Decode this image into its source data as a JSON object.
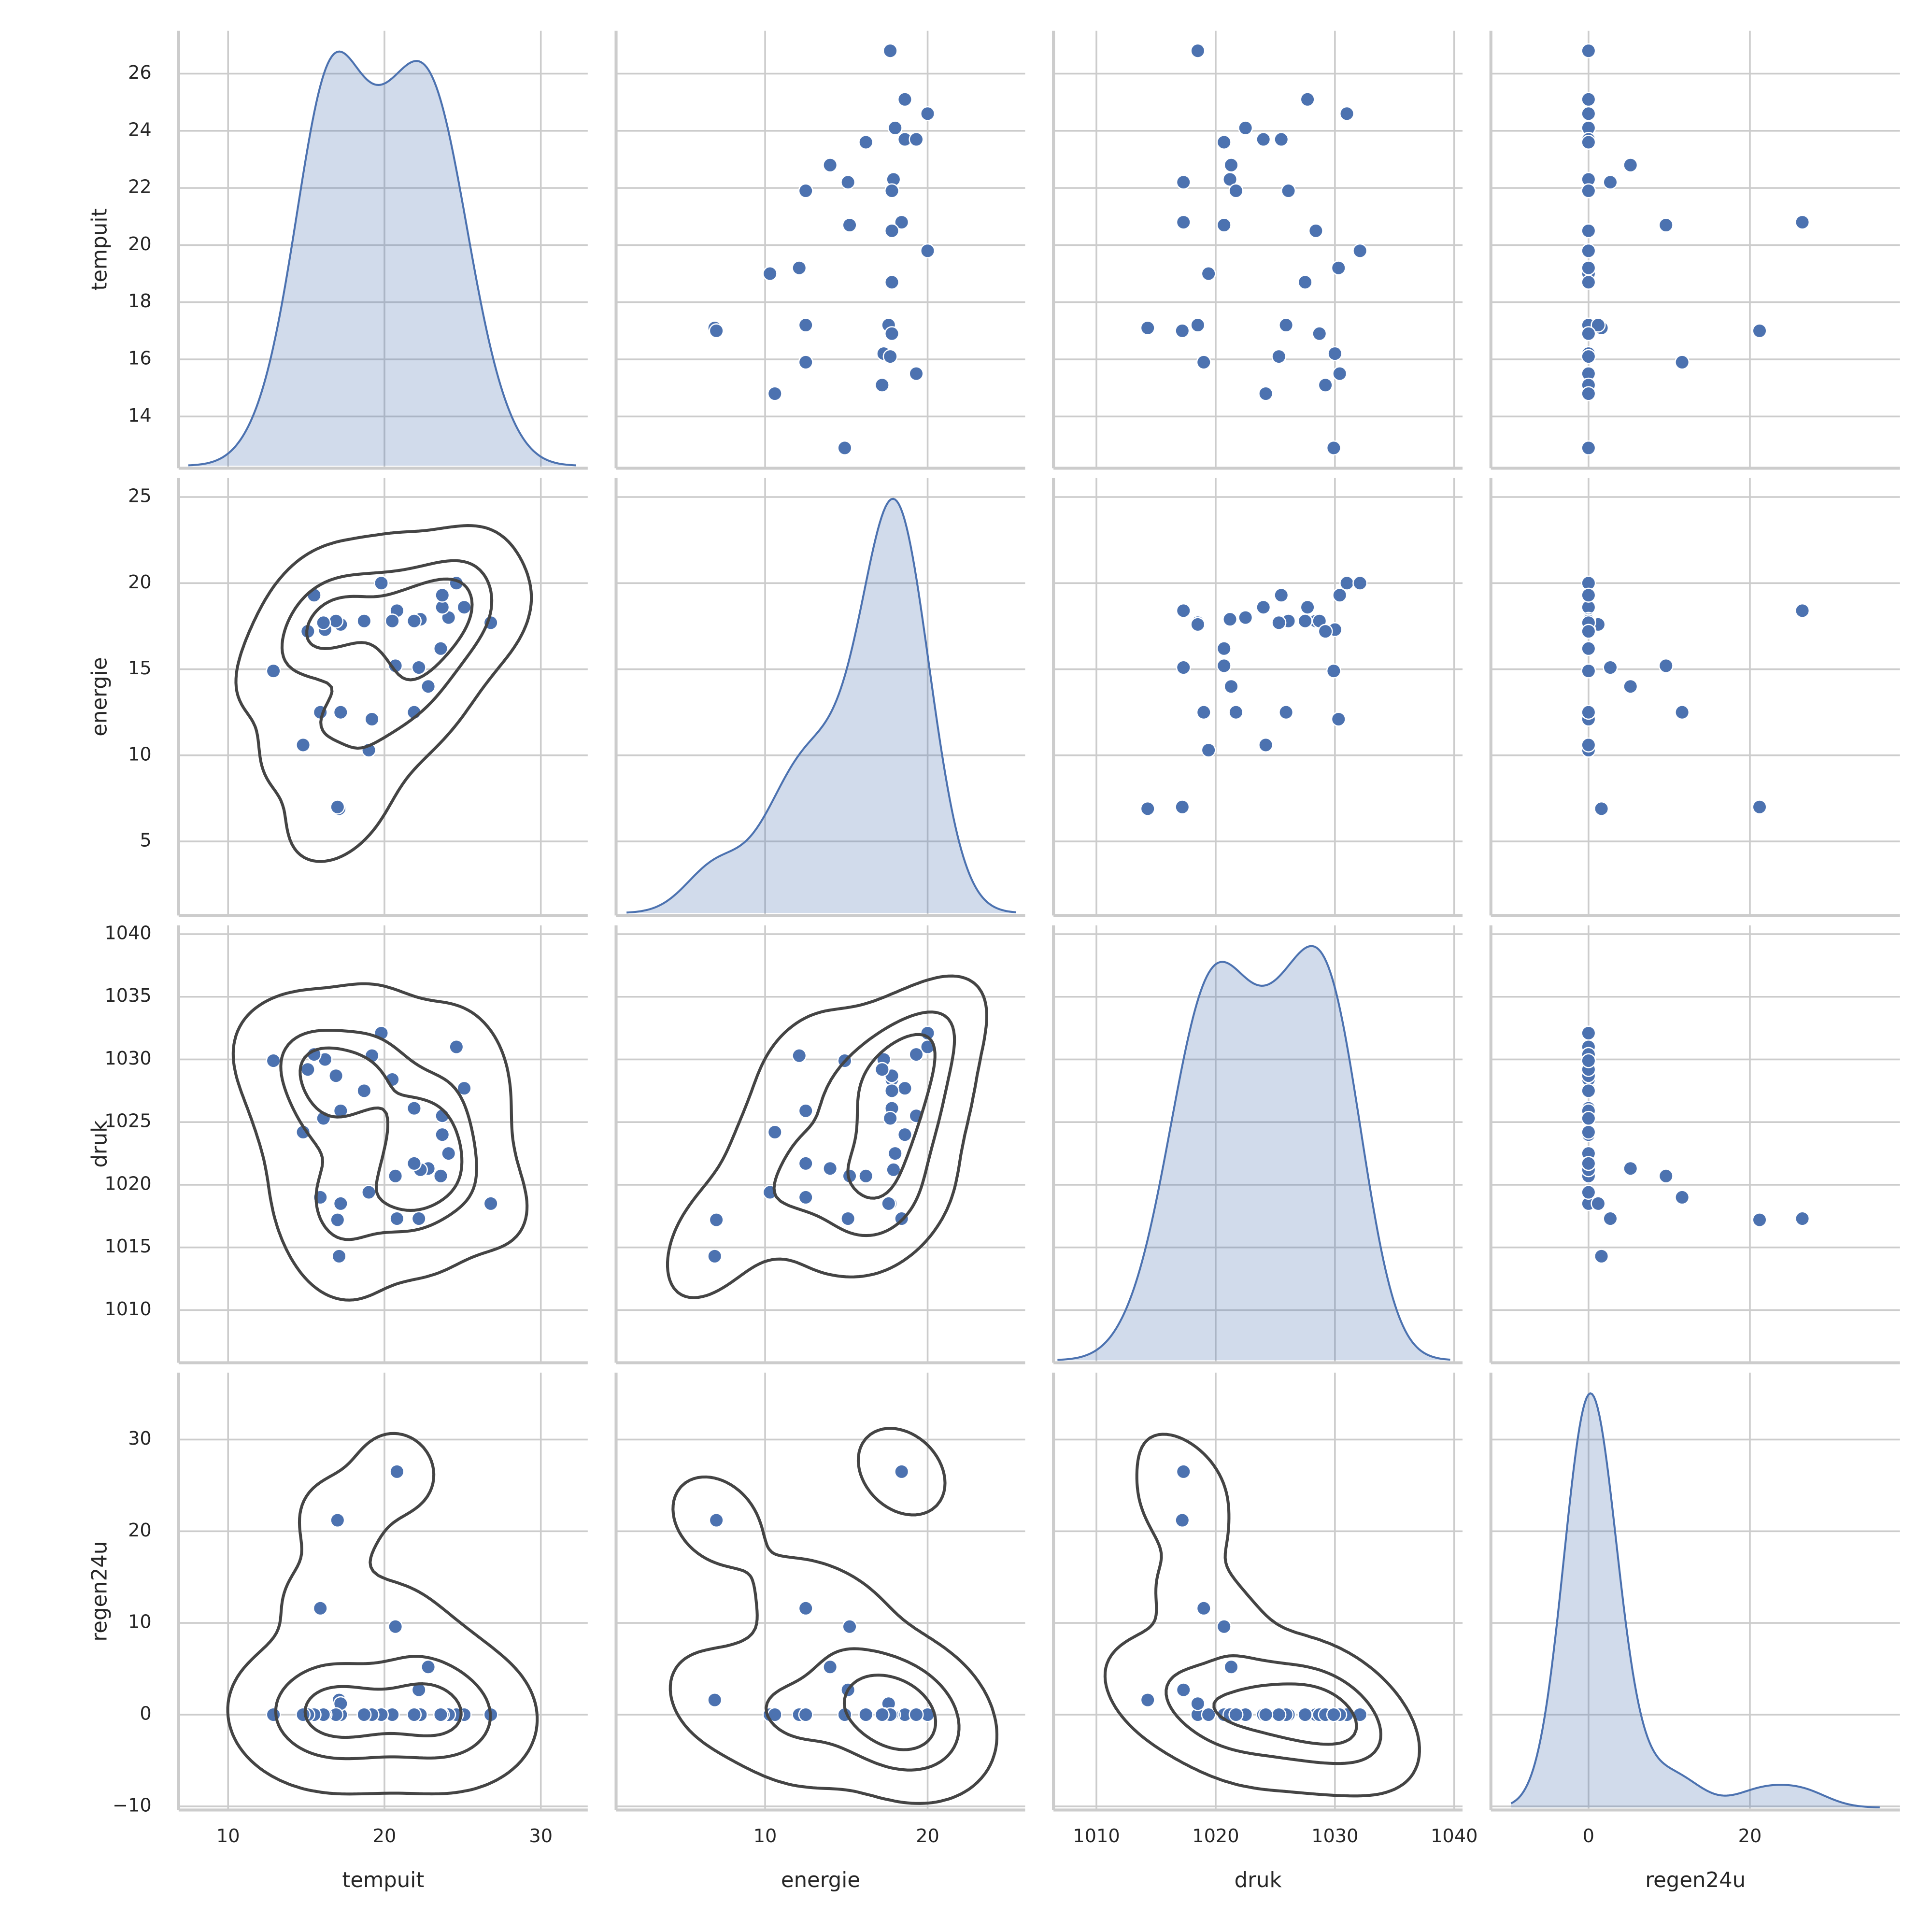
{
  "chart_data": {
    "type": "pairplot",
    "color": "#4c72b0",
    "contour_color": "#444444",
    "grid": true,
    "variables": [
      {
        "name": "tempuit",
        "values": [
          26.8,
          25.1,
          24.6,
          24.1,
          23.7,
          23.7,
          23.6,
          22.8,
          22.2,
          22.3,
          21.9,
          21.9,
          20.7,
          20.8,
          20.5,
          19.8,
          19.0,
          19.2,
          18.7,
          17.1,
          17.0,
          17.2,
          17.2,
          16.9,
          16.2,
          16.1,
          15.9,
          15.5,
          15.1,
          14.8,
          12.9
        ],
        "xlim": [
          6.84,
          33.0
        ],
        "xticks": [
          10,
          20,
          30
        ],
        "ylim": [
          12.19,
          27.5
        ],
        "yticks": [
          14,
          16,
          18,
          20,
          22,
          24,
          26
        ]
      },
      {
        "name": "energie",
        "values": [
          17.7,
          18.6,
          20.0,
          18.0,
          18.6,
          19.3,
          16.2,
          14.0,
          15.1,
          17.9,
          12.5,
          17.8,
          15.2,
          18.4,
          17.8,
          20.0,
          10.3,
          12.1,
          17.8,
          6.9,
          7.0,
          12.5,
          17.6,
          17.8,
          17.3,
          17.7,
          12.5,
          19.3,
          17.2,
          10.6,
          14.9
        ],
        "xlim": [
          0.83,
          26.0
        ],
        "xticks": [
          10,
          20
        ],
        "ylim": [
          0.7,
          26.1
        ],
        "yticks": [
          5,
          10,
          15,
          20,
          25
        ]
      },
      {
        "name": "druk",
        "values": [
          1018.5,
          1027.7,
          1031.0,
          1022.5,
          1024.0,
          1025.5,
          1020.7,
          1021.3,
          1017.3,
          1021.2,
          1021.7,
          1026.1,
          1020.7,
          1017.3,
          1028.4,
          1032.1,
          1019.4,
          1030.3,
          1027.5,
          1014.3,
          1017.2,
          1025.9,
          1018.5,
          1028.7,
          1030.0,
          1025.3,
          1019.0,
          1030.4,
          1029.2,
          1024.2,
          1029.9
        ],
        "xlim": [
          1006.4,
          1040.7
        ],
        "xticks": [
          1010,
          1020,
          1030,
          1040
        ],
        "ylim": [
          1005.8,
          1040.7
        ],
        "yticks": [
          1010,
          1015,
          1020,
          1025,
          1030,
          1035,
          1040
        ]
      },
      {
        "name": "regen24u",
        "values": [
          0,
          0,
          0,
          0,
          0,
          0,
          0,
          5.2,
          2.7,
          0,
          0,
          0,
          9.6,
          26.5,
          0,
          0,
          0,
          0,
          0,
          1.6,
          21.2,
          0,
          1.2,
          0,
          0,
          0,
          11.6,
          0,
          0,
          0,
          0
        ],
        "xlim": [
          -12.1,
          38.6
        ],
        "xticks": [
          0,
          20
        ],
        "ylim": [
          -10.4,
          37.3
        ],
        "yticks": [
          {
            "value": -10,
            "label": "−10"
          },
          0,
          10,
          20,
          30
        ]
      }
    ]
  }
}
